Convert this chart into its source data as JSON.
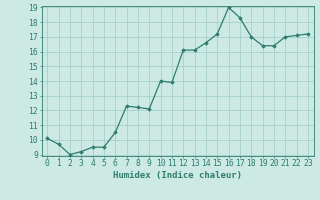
{
  "x": [
    0,
    1,
    2,
    3,
    4,
    5,
    6,
    7,
    8,
    9,
    10,
    11,
    12,
    13,
    14,
    15,
    16,
    17,
    18,
    19,
    20,
    21,
    22,
    23
  ],
  "y": [
    10.1,
    9.7,
    9.0,
    9.2,
    9.5,
    9.5,
    10.5,
    12.3,
    12.2,
    12.1,
    14.0,
    13.9,
    16.1,
    16.1,
    16.6,
    17.2,
    19.0,
    18.3,
    17.0,
    16.4,
    16.4,
    17.0,
    17.1,
    17.2
  ],
  "line_color": "#2e7d6e",
  "marker": "D",
  "markersize": 1.8,
  "linewidth": 0.9,
  "bg_color": "#cce9e4",
  "grid_color": "#9eccc6",
  "xlabel": "Humidex (Indice chaleur)",
  "xlim": [
    -0.5,
    23.5
  ],
  "ylim": [
    9,
    19
  ],
  "xticks": [
    0,
    1,
    2,
    3,
    4,
    5,
    6,
    7,
    8,
    9,
    10,
    11,
    12,
    13,
    14,
    15,
    16,
    17,
    18,
    19,
    20,
    21,
    22,
    23
  ],
  "yticks": [
    9,
    10,
    11,
    12,
    13,
    14,
    15,
    16,
    17,
    18,
    19
  ],
  "xlabel_fontsize": 6.5,
  "tick_fontsize": 5.8
}
